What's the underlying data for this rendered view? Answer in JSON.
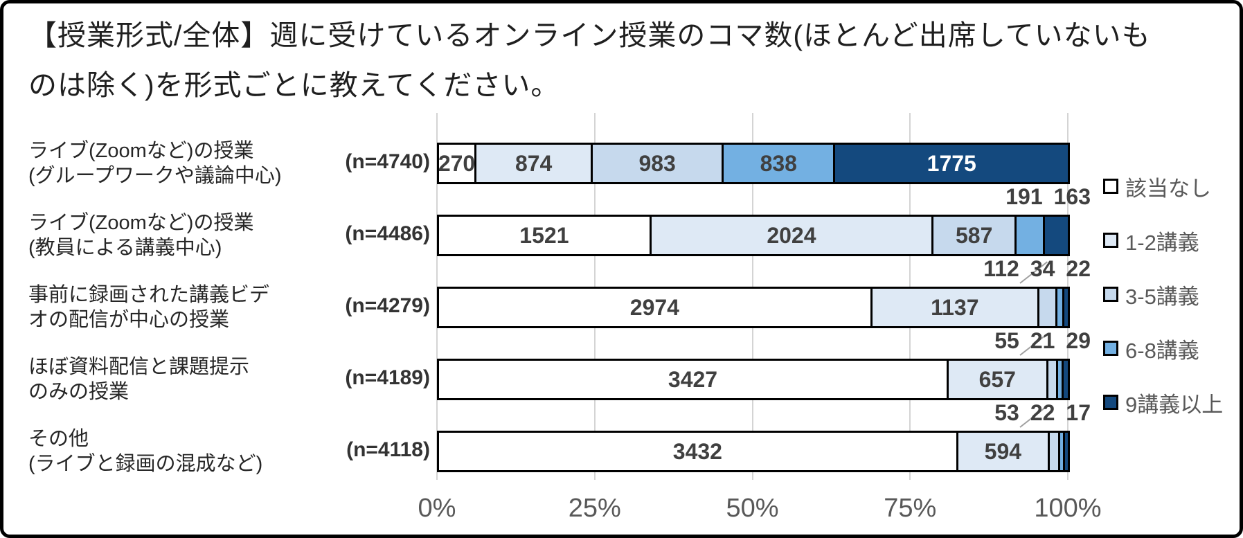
{
  "title": {
    "lines": [
      "【授業形式/全体】週に受けているオンライン授業のコマ数(ほとんど出席していないも",
      "のは除く)を形式ごとに教えてください。"
    ]
  },
  "colors": {
    "frame_border": "#000000",
    "background": "#ffffff",
    "gridline": "#d4d4d4",
    "axis_text": "#595959",
    "category_text": "#262626",
    "data_label": "#404040",
    "data_label_on_dark": "#ffffff",
    "segment_border": "#000000",
    "leader_line": "#a0a0a0",
    "legend_text": "#595959"
  },
  "chart_data": {
    "type": "bar",
    "stacked": true,
    "orientation": "horizontal",
    "title": "【授業形式/全体】週に受けているオンライン授業のコマ数(ほとんど出席していないものは除く)を形式ごとに教えてください。",
    "x_axis": {
      "tick_labels": [
        "0%",
        "25%",
        "50%",
        "75%",
        "100%"
      ],
      "range_percent": [
        0,
        100
      ],
      "gridlines": true
    },
    "legend_position": "right",
    "categories": [
      "ライブ(Zoomなど)の授業(グループワークや議論中心)",
      "ライブ(Zoomなど)の授業(教員による講義中心)",
      "事前に録画された講義ビデオの配信が中心の授業",
      "ほぼ資料配信と課題提示のみの授業",
      "その他(ライブと録画の混成など)"
    ],
    "category_label_lines": [
      [
        "ライブ(Zoomなど)の授業",
        "(グループワークや議論中心)"
      ],
      [
        "ライブ(Zoomなど)の授業",
        "(教員による講義中心)"
      ],
      [
        "事前に録画された講義ビデ",
        "オの配信が中心の授業"
      ],
      [
        "ほぼ資料配信と課題提示",
        "のみの授業"
      ],
      [
        "その他",
        "(ライブと録画の混成など)"
      ]
    ],
    "n_labels": [
      "(n=4740)",
      "(n=4486)",
      "(n=4279)",
      "(n=4189)",
      "(n=4118)"
    ],
    "totals": [
      4740,
      4486,
      4279,
      4189,
      4118
    ],
    "series": [
      {
        "name": "該当なし",
        "color": "#ffffff",
        "values": [
          270,
          1521,
          2974,
          3427,
          3432
        ]
      },
      {
        "name": "1-2講義",
        "color": "#dee9f5",
        "values": [
          874,
          2024,
          1137,
          657,
          594
        ]
      },
      {
        "name": "3-5講義",
        "color": "#c6d9ed",
        "values": [
          983,
          587,
          112,
          55,
          53
        ]
      },
      {
        "name": "6-8講義",
        "color": "#73b0e2",
        "values": [
          838,
          191,
          34,
          21,
          22
        ]
      },
      {
        "name": "9講義以上",
        "color": "#14497e",
        "values": [
          1775,
          163,
          22,
          29,
          17
        ]
      }
    ]
  }
}
